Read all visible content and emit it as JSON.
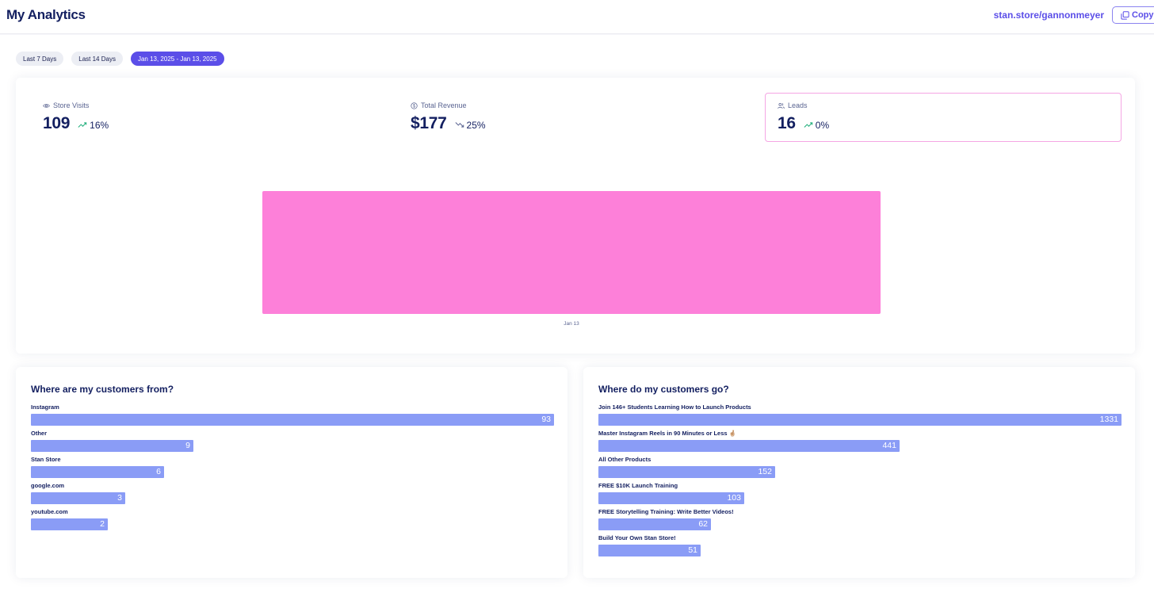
{
  "header": {
    "title": "My Analytics",
    "store_url": "stan.store/gannonmeyer",
    "copy_label": "Copy"
  },
  "filters": [
    {
      "label": "Last 7 Days",
      "active": false
    },
    {
      "label": "Last 14 Days",
      "active": false
    },
    {
      "label": "Jan 13, 2025 - Jan 13, 2025",
      "active": true
    }
  ],
  "stats": {
    "visits": {
      "label": "Store Visits",
      "value": "109",
      "change": "16%",
      "trend": "up",
      "icon": "eye-icon"
    },
    "revenue": {
      "label": "Total Revenue",
      "value": "$177",
      "change": "25%",
      "trend": "down",
      "icon": "dollar-circle-icon"
    },
    "leads": {
      "label": "Leads",
      "value": "16",
      "change": "0%",
      "trend": "up",
      "icon": "users-icon",
      "selected": true
    }
  },
  "colors": {
    "accent": "#5b4ee8",
    "bar_pink": "#fd80d9",
    "bar_blue": "#8a9cf6",
    "trend_up": "#1fae7a",
    "trend_down": "#5a6491"
  },
  "chart_data": {
    "type": "bar",
    "categories": [
      "Jan 13"
    ],
    "series": [
      {
        "values": [
          16
        ]
      }
    ],
    "title": "",
    "xlabel": "",
    "ylabel": "",
    "grid": false
  },
  "customers_from": {
    "title": "Where are my customers from?",
    "items": [
      {
        "label": "Instagram",
        "value": 93
      },
      {
        "label": "Other",
        "value": 9
      },
      {
        "label": "Stan Store",
        "value": 6
      },
      {
        "label": "google.com",
        "value": 3
      },
      {
        "label": "youtube.com",
        "value": 2
      }
    ]
  },
  "customers_go": {
    "title": "Where do my customers go?",
    "items": [
      {
        "label": "Join 146+ Students Learning How to Launch Products",
        "value": 1331
      },
      {
        "label": "Master Instagram Reels in 90 Minutes or Less 🤞🏼",
        "value": 441
      },
      {
        "label": "All Other Products",
        "value": 152
      },
      {
        "label": "FREE $10K Launch Training",
        "value": 103
      },
      {
        "label": "FREE Storytelling Training: Write Better Videos!",
        "value": 62
      },
      {
        "label": "Build Your Own Stan Store!",
        "value": 51
      }
    ]
  }
}
